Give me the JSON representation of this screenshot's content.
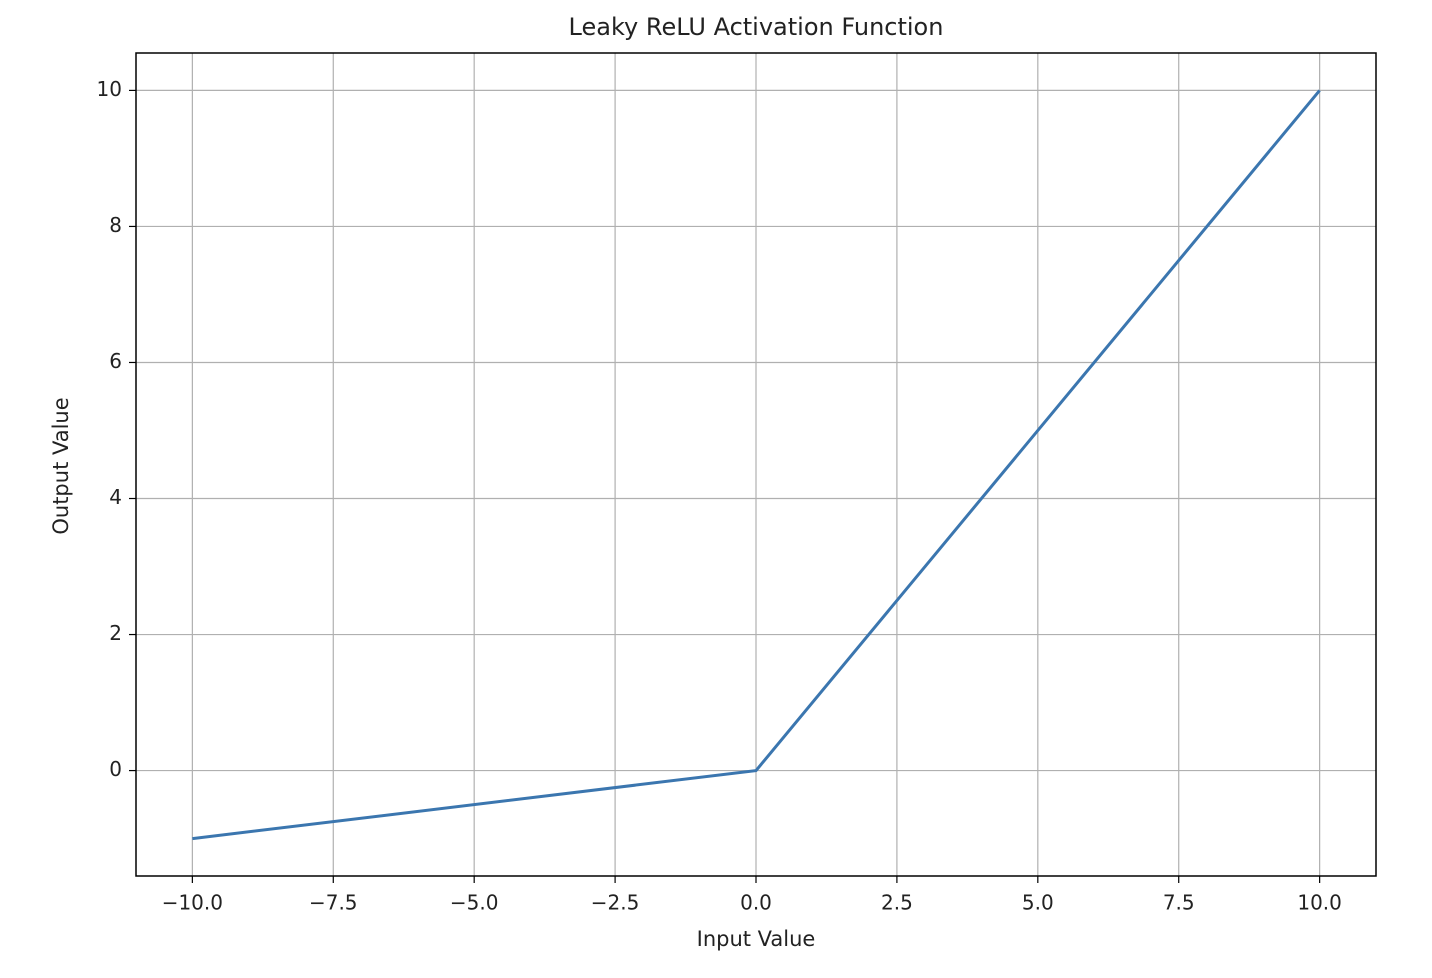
{
  "chart_data": {
    "type": "line",
    "title": "Leaky ReLU Activation Function",
    "x_label": "Input Value",
    "y_label": "Output Value",
    "x": [
      -10,
      0,
      10
    ],
    "series": [
      {
        "name": "Leaky ReLU",
        "color": "#3b76af",
        "values": [
          -1,
          0,
          10
        ]
      }
    ],
    "xlim": [
      -11,
      11
    ],
    "xticks": [
      {
        "value": -10,
        "label": "−10.0"
      },
      {
        "value": -7.5,
        "label": "−7.5"
      },
      {
        "value": -5,
        "label": "−5.0"
      },
      {
        "value": -2.5,
        "label": "−2.5"
      },
      {
        "value": 0,
        "label": "0.0"
      },
      2.5,
      {
        "value": 5,
        "label": "5.0"
      },
      7.5,
      {
        "value": 10,
        "label": "10.0"
      }
    ],
    "ylim": [
      -1.55,
      10.55
    ],
    "yticks": [
      0,
      2,
      4,
      6,
      8,
      10
    ],
    "grid": true
  }
}
